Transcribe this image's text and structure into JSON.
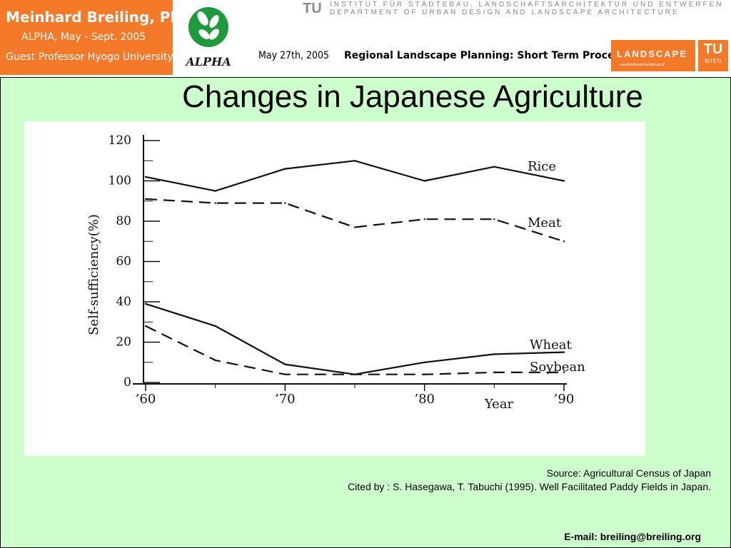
{
  "header": {
    "author_name": "Meinhard Breiling, Ph.D.",
    "author_line2": "ALPHA, May - Sept. 2005",
    "author_line3": "Guest Professor Hyogo University",
    "alpha_logo_text": "ALPHA",
    "tu_small": "TU",
    "institute_line1": "INSTITUT FÜR STÄDTEBAU, LANDSCHAFTSARCHITEKTUR UND ENTWERFEN",
    "institute_line2": "DEPARTMENT OF URBAN DESIGN AND LANDSCAPE ARCHITECTURE",
    "date": "May 27th, 2005",
    "course": "Regional Landscape Planning: Short Term Processes",
    "landscape_label": "LANDSCAPE",
    "landscape_sub": "www.landscape.tuwien.ac.at",
    "tu_logo": "TU",
    "tu_wien": "WIEN",
    "brand_color": "#f47a2a"
  },
  "slide": {
    "title": "Changes in Japanese Agriculture",
    "source_line1": "Source: Agricultural Census of Japan",
    "source_line2": "Cited by : S. Hasegawa, T. Tabuchi (1995). Well Facilitated Paddy Fields in Japan.",
    "email": "E-mail: breiling@breiling.org",
    "background_color": "#ccffcc"
  },
  "chart_data": {
    "type": "line",
    "title": "",
    "xlabel": "Year",
    "ylabel": "Self-sufficiency(%)",
    "x": [
      1960,
      1965,
      1970,
      1975,
      1980,
      1985,
      1990
    ],
    "xticks": [
      {
        "value": 1960,
        "label": "’60"
      },
      {
        "value": 1970,
        "label": "’70"
      },
      {
        "value": 1980,
        "label": "’80"
      },
      {
        "value": 1990,
        "label": "’90"
      }
    ],
    "yticks": [
      0,
      20,
      40,
      60,
      80,
      100,
      120
    ],
    "xlim": [
      1960,
      1990
    ],
    "ylim": [
      0,
      120
    ],
    "series": [
      {
        "name": "Rice",
        "style": "solid",
        "values": [
          102,
          95,
          106,
          110,
          100,
          107,
          100
        ]
      },
      {
        "name": "Meat",
        "style": "dashed",
        "values": [
          91,
          89,
          89,
          77,
          81,
          81,
          70
        ]
      },
      {
        "name": "Wheat",
        "style": "solid",
        "values": [
          39,
          28,
          9,
          4,
          10,
          14,
          15
        ]
      },
      {
        "name": "Soybean",
        "style": "dashed",
        "values": [
          28,
          11,
          4,
          4,
          4,
          5,
          5
        ]
      }
    ]
  }
}
